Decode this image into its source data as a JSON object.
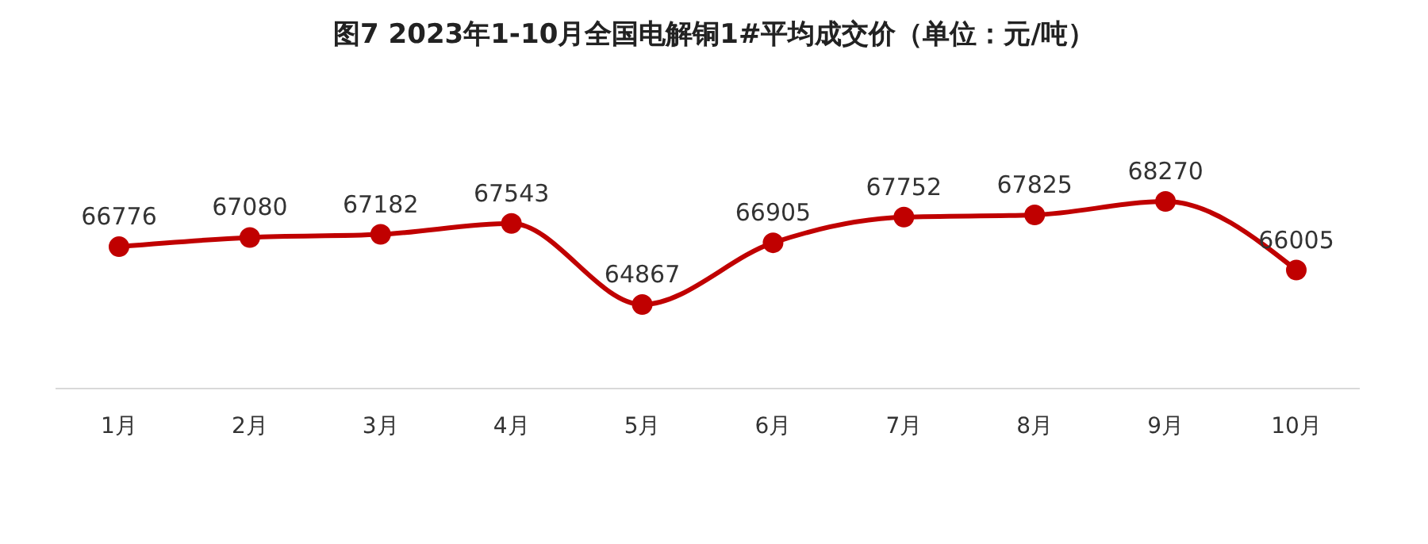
{
  "chart_data": {
    "type": "line",
    "title": "图7 2023年1-10月全国电解铜1#平均成交价（单位：元/吨）",
    "categories": [
      "1月",
      "2月",
      "3月",
      "4月",
      "5月",
      "6月",
      "7月",
      "8月",
      "9月",
      "10月"
    ],
    "series": [
      {
        "color": "#c00000",
        "values": [
          66776,
          67080,
          67182,
          67543,
          64867,
          66905,
          67752,
          67825,
          68270,
          66005
        ]
      }
    ],
    "data_labels": true,
    "marker": "circle",
    "line_style": "solid",
    "grid": false,
    "legend": false
  }
}
